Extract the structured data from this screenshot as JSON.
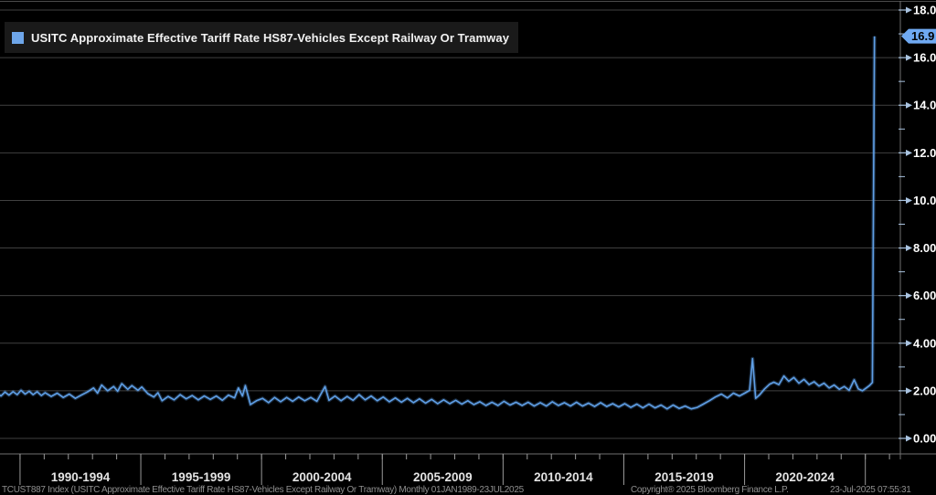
{
  "window": {
    "background": "#000000"
  },
  "legend": {
    "label": "USITC Approximate Effective Tariff Rate HS87-Vehicles Except Railway Or Tramway",
    "swatch_color": "#6ea6ea"
  },
  "footer": {
    "ticker_text": "TCUST887 Index (USITC Approximate Effective Tariff Rate HS87-Vehicles Except Railway Or Tramway)  Monthly 01JAN1989-23JUL2025",
    "copyright": "Copyright® 2025 Bloomberg Finance L.P.",
    "timestamp": "23-Jul-2025 07:55:31"
  },
  "chart_data": {
    "type": "line",
    "title": "",
    "xlabel": "",
    "ylabel": "",
    "grid": "horizontal",
    "legend_position": "top-left",
    "ylim": [
      0,
      18
    ],
    "xlim": [
      1989.17,
      2026.45
    ],
    "y_axis": {
      "side": "right",
      "tick_values": [
        0,
        2,
        4,
        6,
        8,
        10,
        12,
        14,
        16,
        18
      ],
      "tick_labels": [
        "0.00",
        "2.00",
        "4.00",
        "6.00",
        "8.00",
        "10.00",
        "12.00",
        "14.00",
        "16.00",
        "18.00"
      ],
      "minor_tick_values": [
        1,
        3,
        5,
        7,
        9,
        11,
        13,
        15,
        17
      ]
    },
    "x_axis": {
      "separator_years": [
        1990,
        1995,
        2000,
        2005,
        2010,
        2015,
        2020,
        2025
      ],
      "minor_tick_years": [
        1989,
        1990,
        1991,
        1992,
        1993,
        1994,
        1995,
        1996,
        1997,
        1998,
        1999,
        2000,
        2001,
        2002,
        2003,
        2004,
        2005,
        2006,
        2007,
        2008,
        2009,
        2010,
        2011,
        2012,
        2013,
        2014,
        2015,
        2016,
        2017,
        2018,
        2019,
        2020,
        2021,
        2022,
        2023,
        2024,
        2025,
        2026
      ],
      "group_labels": [
        {
          "label": "1990-1994",
          "center": 1992.5
        },
        {
          "label": "1995-1999",
          "center": 1997.5
        },
        {
          "label": "2000-2004",
          "center": 2002.5
        },
        {
          "label": "2005-2009",
          "center": 2007.5
        },
        {
          "label": "2010-2014",
          "center": 2012.5
        },
        {
          "label": "2015-2019",
          "center": 2017.5
        },
        {
          "label": "2020-2024",
          "center": 2022.5
        }
      ]
    },
    "last_value": 16.9,
    "last_label": "16.9",
    "colors": {
      "line": "#5f9fe6",
      "gridline": "#404040",
      "axis_frame": "#707070",
      "tick_arrow": "#a9c3e0",
      "x_tick": "#9a9a9a",
      "y_label": "#ffffff",
      "x_label": "#e3e3e3",
      "badge_bg": "#6fa9f2",
      "badge_text": "#000000"
    },
    "series": [
      {
        "name": "USITC Approximate Effective Tariff Rate HS87-Vehicles Except Railway Or Tramway",
        "color": "#5f9fe6",
        "points": [
          [
            1989.04,
            1.92
          ],
          [
            1989.21,
            1.78
          ],
          [
            1989.38,
            1.95
          ],
          [
            1989.54,
            1.82
          ],
          [
            1989.71,
            1.96
          ],
          [
            1989.88,
            1.84
          ],
          [
            1990.04,
            2.02
          ],
          [
            1990.21,
            1.86
          ],
          [
            1990.38,
            1.98
          ],
          [
            1990.54,
            1.84
          ],
          [
            1990.71,
            1.96
          ],
          [
            1990.88,
            1.8
          ],
          [
            1991.04,
            1.92
          ],
          [
            1991.29,
            1.76
          ],
          [
            1991.54,
            1.9
          ],
          [
            1991.79,
            1.72
          ],
          [
            1992.04,
            1.86
          ],
          [
            1992.29,
            1.68
          ],
          [
            1992.54,
            1.82
          ],
          [
            1992.79,
            1.95
          ],
          [
            1993.04,
            2.12
          ],
          [
            1993.21,
            1.9
          ],
          [
            1993.38,
            2.24
          ],
          [
            1993.63,
            2.0
          ],
          [
            1993.88,
            2.18
          ],
          [
            1994.04,
            1.98
          ],
          [
            1994.21,
            2.3
          ],
          [
            1994.46,
            2.06
          ],
          [
            1994.63,
            2.22
          ],
          [
            1994.88,
            2.02
          ],
          [
            1995.04,
            2.16
          ],
          [
            1995.29,
            1.88
          ],
          [
            1995.54,
            1.74
          ],
          [
            1995.71,
            1.92
          ],
          [
            1995.88,
            1.58
          ],
          [
            1996.13,
            1.76
          ],
          [
            1996.38,
            1.62
          ],
          [
            1996.63,
            1.84
          ],
          [
            1996.88,
            1.66
          ],
          [
            1997.13,
            1.8
          ],
          [
            1997.38,
            1.62
          ],
          [
            1997.63,
            1.78
          ],
          [
            1997.88,
            1.64
          ],
          [
            1998.13,
            1.78
          ],
          [
            1998.38,
            1.6
          ],
          [
            1998.63,
            1.82
          ],
          [
            1998.88,
            1.7
          ],
          [
            1999.04,
            2.12
          ],
          [
            1999.21,
            1.78
          ],
          [
            1999.33,
            2.22
          ],
          [
            1999.54,
            1.42
          ],
          [
            1999.79,
            1.58
          ],
          [
            2000.04,
            1.68
          ],
          [
            2000.29,
            1.5
          ],
          [
            2000.54,
            1.72
          ],
          [
            2000.79,
            1.54
          ],
          [
            2001.04,
            1.72
          ],
          [
            2001.29,
            1.56
          ],
          [
            2001.54,
            1.74
          ],
          [
            2001.79,
            1.58
          ],
          [
            2002.04,
            1.72
          ],
          [
            2002.29,
            1.56
          ],
          [
            2002.63,
            2.18
          ],
          [
            2002.79,
            1.6
          ],
          [
            2003.04,
            1.78
          ],
          [
            2003.29,
            1.58
          ],
          [
            2003.54,
            1.76
          ],
          [
            2003.79,
            1.6
          ],
          [
            2004.04,
            1.84
          ],
          [
            2004.29,
            1.62
          ],
          [
            2004.54,
            1.78
          ],
          [
            2004.79,
            1.58
          ],
          [
            2005.04,
            1.74
          ],
          [
            2005.29,
            1.54
          ],
          [
            2005.54,
            1.7
          ],
          [
            2005.79,
            1.52
          ],
          [
            2006.04,
            1.68
          ],
          [
            2006.29,
            1.5
          ],
          [
            2006.54,
            1.66
          ],
          [
            2006.79,
            1.48
          ],
          [
            2007.04,
            1.64
          ],
          [
            2007.29,
            1.46
          ],
          [
            2007.54,
            1.62
          ],
          [
            2007.79,
            1.46
          ],
          [
            2008.04,
            1.6
          ],
          [
            2008.29,
            1.44
          ],
          [
            2008.54,
            1.58
          ],
          [
            2008.79,
            1.42
          ],
          [
            2009.04,
            1.54
          ],
          [
            2009.29,
            1.38
          ],
          [
            2009.54,
            1.52
          ],
          [
            2009.79,
            1.38
          ],
          [
            2010.04,
            1.56
          ],
          [
            2010.29,
            1.4
          ],
          [
            2010.54,
            1.52
          ],
          [
            2010.79,
            1.38
          ],
          [
            2011.04,
            1.52
          ],
          [
            2011.29,
            1.36
          ],
          [
            2011.54,
            1.5
          ],
          [
            2011.79,
            1.36
          ],
          [
            2012.04,
            1.54
          ],
          [
            2012.29,
            1.38
          ],
          [
            2012.54,
            1.5
          ],
          [
            2012.79,
            1.36
          ],
          [
            2013.04,
            1.52
          ],
          [
            2013.29,
            1.36
          ],
          [
            2013.54,
            1.48
          ],
          [
            2013.79,
            1.34
          ],
          [
            2014.04,
            1.5
          ],
          [
            2014.29,
            1.34
          ],
          [
            2014.54,
            1.46
          ],
          [
            2014.79,
            1.32
          ],
          [
            2015.04,
            1.46
          ],
          [
            2015.29,
            1.3
          ],
          [
            2015.54,
            1.44
          ],
          [
            2015.79,
            1.28
          ],
          [
            2016.04,
            1.44
          ],
          [
            2016.29,
            1.28
          ],
          [
            2016.54,
            1.4
          ],
          [
            2016.79,
            1.24
          ],
          [
            2017.04,
            1.4
          ],
          [
            2017.29,
            1.26
          ],
          [
            2017.54,
            1.36
          ],
          [
            2017.79,
            1.24
          ],
          [
            2018.04,
            1.3
          ],
          [
            2018.29,
            1.44
          ],
          [
            2018.54,
            1.58
          ],
          [
            2018.79,
            1.74
          ],
          [
            2019.04,
            1.86
          ],
          [
            2019.29,
            1.7
          ],
          [
            2019.54,
            1.9
          ],
          [
            2019.79,
            1.78
          ],
          [
            2020.04,
            1.92
          ],
          [
            2020.21,
            2.02
          ],
          [
            2020.33,
            3.35
          ],
          [
            2020.46,
            1.68
          ],
          [
            2020.63,
            1.84
          ],
          [
            2020.83,
            2.08
          ],
          [
            2021.04,
            2.28
          ],
          [
            2021.21,
            2.36
          ],
          [
            2021.42,
            2.26
          ],
          [
            2021.63,
            2.62
          ],
          [
            2021.83,
            2.4
          ],
          [
            2022.04,
            2.56
          ],
          [
            2022.25,
            2.32
          ],
          [
            2022.46,
            2.48
          ],
          [
            2022.67,
            2.26
          ],
          [
            2022.88,
            2.38
          ],
          [
            2023.08,
            2.2
          ],
          [
            2023.29,
            2.32
          ],
          [
            2023.5,
            2.12
          ],
          [
            2023.71,
            2.24
          ],
          [
            2023.92,
            2.06
          ],
          [
            2024.13,
            2.18
          ],
          [
            2024.33,
            2.02
          ],
          [
            2024.54,
            2.46
          ],
          [
            2024.71,
            2.08
          ],
          [
            2024.88,
            2.0
          ],
          [
            2025.04,
            2.12
          ],
          [
            2025.17,
            2.22
          ],
          [
            2025.29,
            2.35
          ],
          [
            2025.38,
            16.9
          ]
        ]
      }
    ]
  }
}
